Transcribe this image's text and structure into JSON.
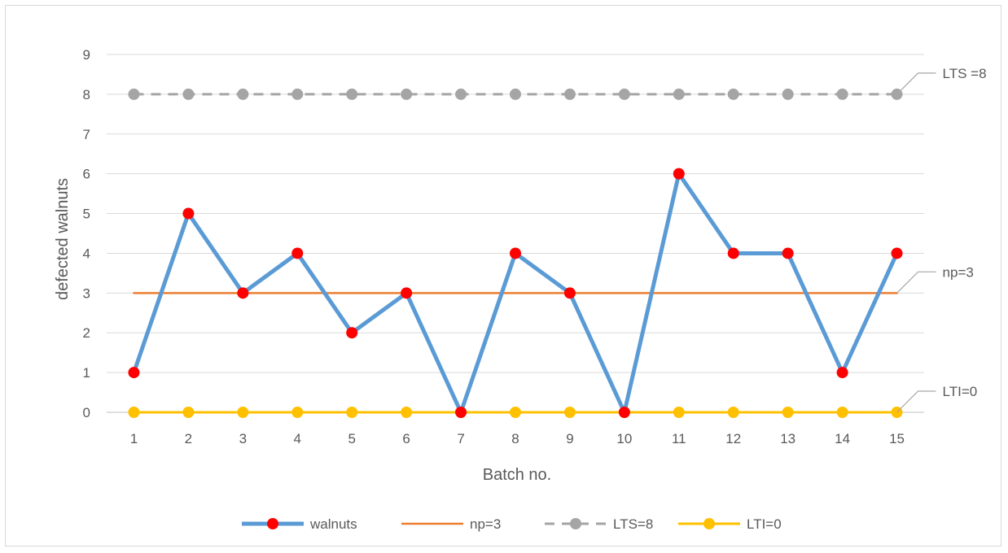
{
  "chart_data": {
    "type": "line",
    "title": "",
    "xlabel": "Batch no.",
    "ylabel": "defected walnuts",
    "categories": [
      "1",
      "2",
      "3",
      "4",
      "5",
      "6",
      "7",
      "8",
      "9",
      "10",
      "11",
      "12",
      "13",
      "14",
      "15"
    ],
    "yticks": [
      "0",
      "1",
      "2",
      "3",
      "4",
      "5",
      "6",
      "7",
      "8",
      "9"
    ],
    "ylim": [
      0,
      9
    ],
    "grid": true,
    "legend_position": "bottom",
    "series": [
      {
        "name": "walnuts",
        "values": [
          1,
          5,
          3,
          4,
          2,
          3,
          0,
          4,
          3,
          0,
          6,
          4,
          4,
          1,
          4
        ],
        "line_color": "#5b9bd5",
        "marker_color": "#ff0000",
        "line_style": "solid",
        "marker": "circle"
      },
      {
        "name": "np=3",
        "values": [
          3,
          3,
          3,
          3,
          3,
          3,
          3,
          3,
          3,
          3,
          3,
          3,
          3,
          3,
          3
        ],
        "line_color": "#ed7d31",
        "line_style": "solid",
        "marker": "none"
      },
      {
        "name": "LTS=8",
        "values": [
          8,
          8,
          8,
          8,
          8,
          8,
          8,
          8,
          8,
          8,
          8,
          8,
          8,
          8,
          8
        ],
        "line_color": "#a5a5a5",
        "marker_color": "#a5a5a5",
        "line_style": "dashed",
        "marker": "circle"
      },
      {
        "name": "LTI=0",
        "values": [
          0,
          0,
          0,
          0,
          0,
          0,
          0,
          0,
          0,
          0,
          0,
          0,
          0,
          0,
          0
        ],
        "line_color": "#ffc000",
        "marker_color": "#ffc000",
        "line_style": "solid",
        "marker": "circle"
      }
    ],
    "annotations": [
      {
        "text": "LTS =8",
        "series": "LTS=8"
      },
      {
        "text": "np=3",
        "series": "np=3"
      },
      {
        "text": "LTI=0",
        "series": "LTI=0"
      }
    ]
  }
}
